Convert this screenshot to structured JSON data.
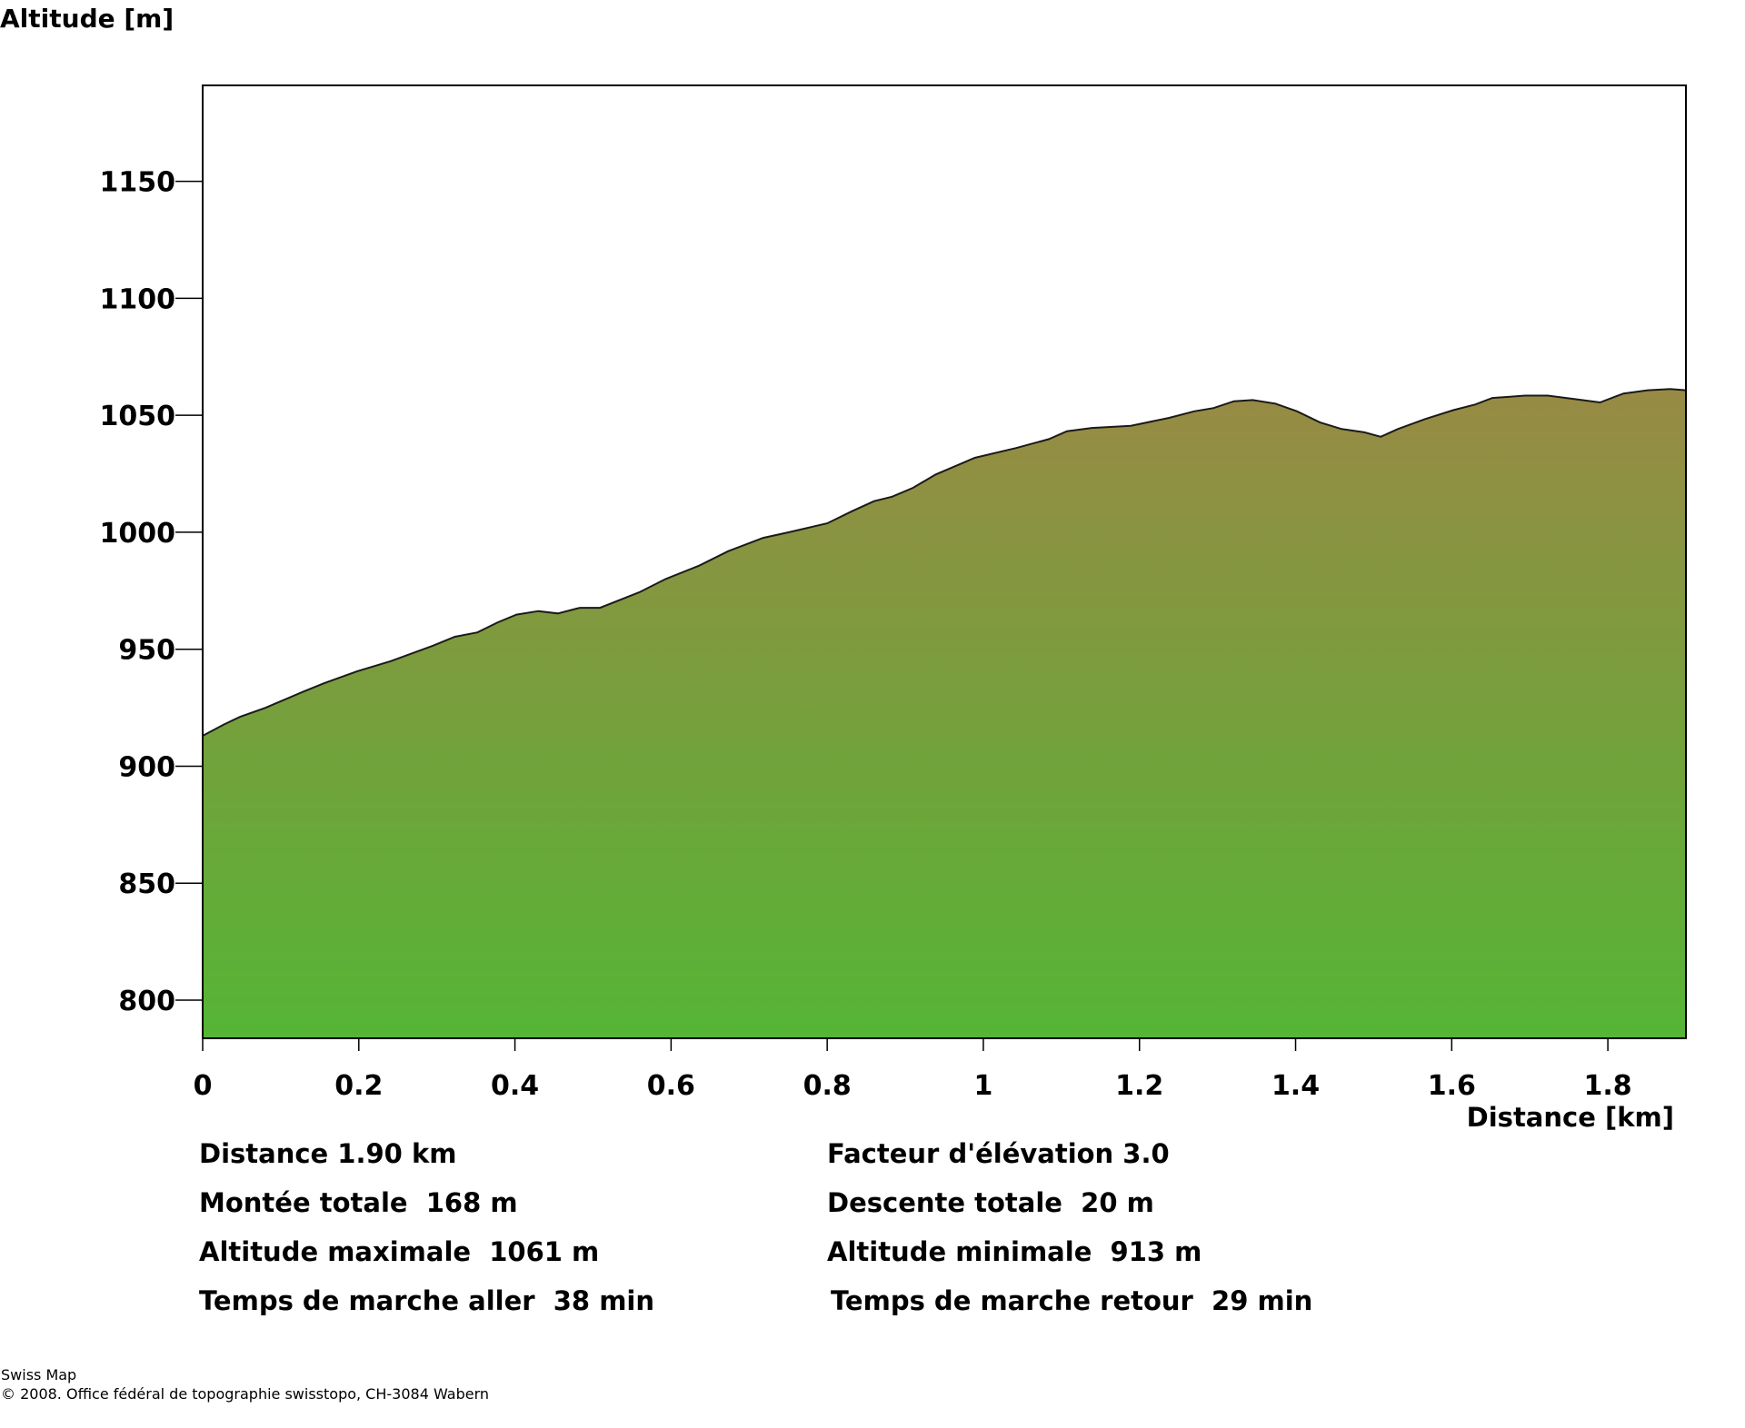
{
  "chart_data": {
    "type": "area",
    "ylabel": "Altitude [m]",
    "xlabel": "Distance [km]",
    "xlim": [
      0,
      1.9
    ],
    "ylim": [
      783.7,
      1191
    ],
    "x_ticks": [
      0,
      0.2,
      0.4,
      0.6,
      0.8,
      1,
      1.2,
      1.4,
      1.6,
      1.8
    ],
    "x_tick_labels": [
      "0",
      "0.2",
      "0.4",
      "0.6",
      "0.8",
      "1",
      "1.2",
      "1.4",
      "1.6",
      "1.8"
    ],
    "y_ticks": [
      800,
      850,
      900,
      950,
      1000,
      1050,
      1100,
      1150
    ],
    "y_tick_labels": [
      "800",
      "850",
      "900",
      "950",
      "1000",
      "1050",
      "1100",
      "1150"
    ],
    "grid": false,
    "fill_colors": {
      "top": "#988a44",
      "bottom": "#55b535"
    },
    "x": [
      0,
      0.027,
      0.048,
      0.08,
      0.127,
      0.155,
      0.198,
      0.241,
      0.295,
      0.323,
      0.352,
      0.378,
      0.402,
      0.43,
      0.455,
      0.483,
      0.509,
      0.559,
      0.593,
      0.636,
      0.673,
      0.718,
      0.751,
      0.8,
      0.832,
      0.86,
      0.883,
      0.91,
      0.939,
      0.989,
      1.042,
      1.084,
      1.107,
      1.139,
      1.189,
      1.238,
      1.27,
      1.295,
      1.321,
      1.345,
      1.374,
      1.402,
      1.431,
      1.459,
      1.488,
      1.509,
      1.531,
      1.566,
      1.602,
      1.63,
      1.652,
      1.694,
      1.723,
      1.758,
      1.79,
      1.82,
      1.851,
      1.88,
      1.9
    ],
    "y": [
      913,
      917.8,
      921.1,
      924.9,
      931.6,
      935.4,
      940.6,
      944.9,
      951.5,
      955.3,
      957.2,
      961.5,
      964.8,
      966.3,
      965.3,
      967.7,
      967.7,
      974.3,
      980,
      985.7,
      991.9,
      997.6,
      1000,
      1003.8,
      1009,
      1013.3,
      1015.2,
      1019,
      1024.7,
      1031.8,
      1036,
      1039.8,
      1043.2,
      1044.6,
      1045.5,
      1048.9,
      1051.7,
      1053.1,
      1056,
      1056.5,
      1055,
      1051.7,
      1047,
      1044.1,
      1042.7,
      1040.8,
      1044.1,
      1048.4,
      1052.2,
      1054.6,
      1057.4,
      1058.4,
      1058.4,
      1056.9,
      1055.5,
      1059.3,
      1060.7,
      1061.2,
      1060.7
    ]
  },
  "stats": {
    "distance": "Distance 1.90 km",
    "elevation_factor": "Facteur d'élévation 3.0",
    "total_ascent": "Montée totale  168 m",
    "total_descent": "Descente totale  20 m",
    "max_altitude": "Altitude maximale  1061 m",
    "min_altitude": "Altitude minimale  913 m",
    "walk_time_out": "Temps de marche aller  38 min",
    "walk_time_back": "Temps de marche retour  29 min"
  },
  "footer": {
    "product": "Swiss Map",
    "copyright": "© 2008. Office fédéral de topographie swisstopo, CH-3084 Wabern"
  }
}
